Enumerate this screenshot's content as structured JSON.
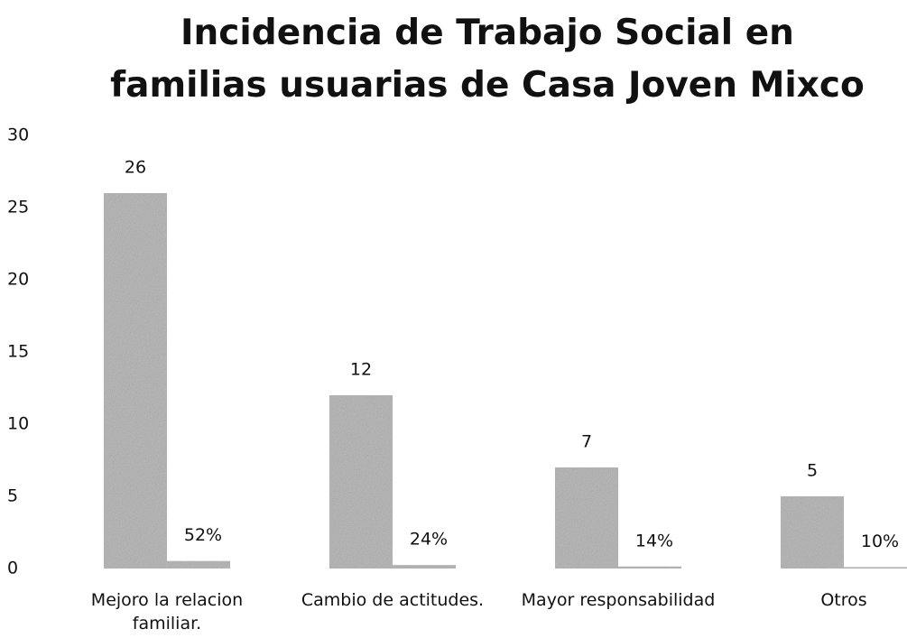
{
  "chart_data": {
    "type": "bar",
    "title": "Incidencia de Trabajo Social en familias usuarias de Casa Joven Mixco",
    "categories": [
      "Mejoro la relacion familiar.",
      "Cambio de actitudes.",
      "Mayor responsabilidad",
      "Otros"
    ],
    "series": [
      {
        "color": "#bcbcbc",
        "values": [
          26,
          12,
          7,
          5
        ]
      },
      {
        "color": "#bcbcbc",
        "values": [
          0.52,
          0.24,
          0.14,
          0.1
        ],
        "value_labels": [
          "52%",
          "24%",
          "14%",
          "10%"
        ]
      }
    ],
    "ylim": [
      0,
      30
    ],
    "yticks": [
      0,
      5,
      10,
      15,
      20,
      25,
      30
    ],
    "grid": false
  }
}
